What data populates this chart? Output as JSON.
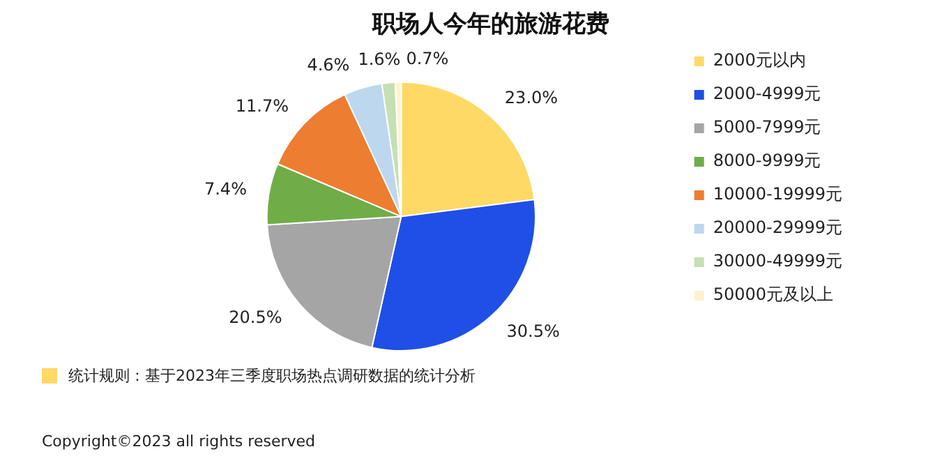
{
  "chart_data": {
    "type": "pie",
    "title": "职场人今年的旅游花费",
    "categories": [
      "2000元以内",
      "2000-4999元",
      "5000-7999元",
      "8000-9999元",
      "10000-19999元",
      "20000-29999元",
      "30000-49999元",
      "50000元及以上"
    ],
    "values": [
      23.0,
      30.5,
      20.5,
      7.4,
      11.7,
      4.6,
      1.6,
      0.7
    ],
    "value_labels": [
      "23.0%",
      "30.5%",
      "20.5%",
      "7.4%",
      "11.7%",
      "4.6%",
      "1.6%",
      "0.7%"
    ],
    "colors": [
      "#ffd966",
      "#1f4fe6",
      "#a5a5a5",
      "#70ad47",
      "#ed7d31",
      "#bdd7ee",
      "#c5e0b4",
      "#fff2cc"
    ],
    "legend": "right",
    "annotations": [
      "统计规则：基于2023年三季度职场热点调研数据的统计分析",
      "Copyright©2023 all rights reserved"
    ]
  }
}
